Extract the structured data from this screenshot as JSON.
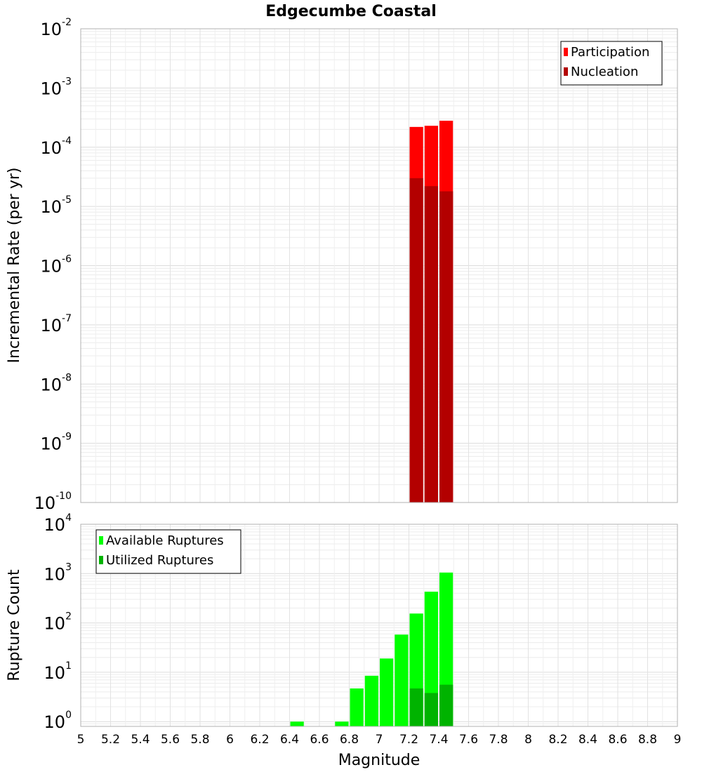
{
  "chart_data": [
    {
      "type": "bar",
      "title": "Edgecumbe Coastal",
      "xlabel": "",
      "ylabel": "Incremental Rate (per yr)",
      "yscale": "log",
      "ylim": [
        1e-10,
        0.01
      ],
      "xlim": [
        5,
        9
      ],
      "yticks": [
        {
          "base": "10",
          "exp": "-10"
        },
        {
          "base": "10",
          "exp": "-9"
        },
        {
          "base": "10",
          "exp": "-8"
        },
        {
          "base": "10",
          "exp": "-7"
        },
        {
          "base": "10",
          "exp": "-6"
        },
        {
          "base": "10",
          "exp": "-5"
        },
        {
          "base": "10",
          "exp": "-4"
        },
        {
          "base": "10",
          "exp": "-3"
        },
        {
          "base": "10",
          "exp": "-2"
        }
      ],
      "grid": true,
      "legend_position": "top-right",
      "bar_width": 0.1,
      "categories": [
        7.25,
        7.35,
        7.45
      ],
      "series": [
        {
          "name": "Participation",
          "color": "#ff0000",
          "values": [
            0.00022,
            0.00023,
            0.00028
          ]
        },
        {
          "name": "Nucleation",
          "color": "#b30000",
          "values": [
            3e-05,
            2.2e-05,
            1.8e-05
          ]
        }
      ]
    },
    {
      "type": "bar",
      "title": "",
      "xlabel": "Magnitude",
      "ylabel": "Rupture Count",
      "yscale": "log",
      "ylim": [
        0.8,
        10000
      ],
      "xlim": [
        5,
        9
      ],
      "yticks": [
        {
          "base": "10",
          "exp": "0"
        },
        {
          "base": "10",
          "exp": "1"
        },
        {
          "base": "10",
          "exp": "2"
        },
        {
          "base": "10",
          "exp": "3"
        },
        {
          "base": "10",
          "exp": "4"
        }
      ],
      "xticks": [
        "5",
        "5.2",
        "5.4",
        "5.6",
        "5.8",
        "6",
        "6.2",
        "6.4",
        "6.6",
        "6.8",
        "7",
        "7.2",
        "7.4",
        "7.6",
        "7.8",
        "8",
        "8.2",
        "8.4",
        "8.6",
        "8.8",
        "9"
      ],
      "grid": true,
      "legend_position": "top-left",
      "bar_width": 0.1,
      "categories": [
        6.45,
        6.75,
        6.85,
        6.95,
        7.05,
        7.15,
        7.25,
        7.35,
        7.45
      ],
      "series": [
        {
          "name": "Available Ruptures",
          "color": "#00ff00",
          "values": [
            1,
            1,
            4.7,
            8.5,
            19,
            58,
            155,
            430,
            1050
          ]
        },
        {
          "name": "Utilized Ruptures",
          "color": "#00b300",
          "values": [
            null,
            null,
            null,
            null,
            null,
            null,
            4.7,
            3.8,
            5.6
          ]
        }
      ]
    }
  ]
}
